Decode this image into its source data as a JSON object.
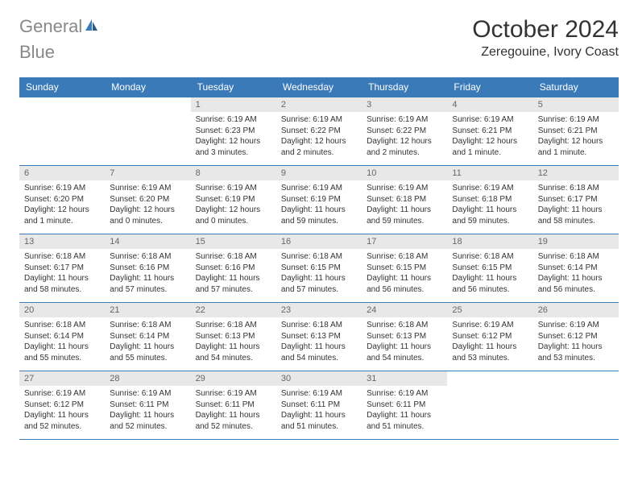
{
  "logo": {
    "text_gray": "General",
    "text_blue": "Blue",
    "icon_color": "#3a7ab8"
  },
  "header": {
    "month_title": "October 2024",
    "location": "Zeregouine, Ivory Coast"
  },
  "colors": {
    "header_bg": "#3a7ab8",
    "header_text": "#ffffff",
    "day_num_bg": "#e8e8e8",
    "border": "#3a7ab8"
  },
  "day_names": [
    "Sunday",
    "Monday",
    "Tuesday",
    "Wednesday",
    "Thursday",
    "Friday",
    "Saturday"
  ],
  "weeks": [
    [
      {
        "num": "",
        "sunrise": "",
        "sunset": "",
        "daylight": ""
      },
      {
        "num": "",
        "sunrise": "",
        "sunset": "",
        "daylight": ""
      },
      {
        "num": "1",
        "sunrise": "Sunrise: 6:19 AM",
        "sunset": "Sunset: 6:23 PM",
        "daylight": "Daylight: 12 hours and 3 minutes."
      },
      {
        "num": "2",
        "sunrise": "Sunrise: 6:19 AM",
        "sunset": "Sunset: 6:22 PM",
        "daylight": "Daylight: 12 hours and 2 minutes."
      },
      {
        "num": "3",
        "sunrise": "Sunrise: 6:19 AM",
        "sunset": "Sunset: 6:22 PM",
        "daylight": "Daylight: 12 hours and 2 minutes."
      },
      {
        "num": "4",
        "sunrise": "Sunrise: 6:19 AM",
        "sunset": "Sunset: 6:21 PM",
        "daylight": "Daylight: 12 hours and 1 minute."
      },
      {
        "num": "5",
        "sunrise": "Sunrise: 6:19 AM",
        "sunset": "Sunset: 6:21 PM",
        "daylight": "Daylight: 12 hours and 1 minute."
      }
    ],
    [
      {
        "num": "6",
        "sunrise": "Sunrise: 6:19 AM",
        "sunset": "Sunset: 6:20 PM",
        "daylight": "Daylight: 12 hours and 1 minute."
      },
      {
        "num": "7",
        "sunrise": "Sunrise: 6:19 AM",
        "sunset": "Sunset: 6:20 PM",
        "daylight": "Daylight: 12 hours and 0 minutes."
      },
      {
        "num": "8",
        "sunrise": "Sunrise: 6:19 AM",
        "sunset": "Sunset: 6:19 PM",
        "daylight": "Daylight: 12 hours and 0 minutes."
      },
      {
        "num": "9",
        "sunrise": "Sunrise: 6:19 AM",
        "sunset": "Sunset: 6:19 PM",
        "daylight": "Daylight: 11 hours and 59 minutes."
      },
      {
        "num": "10",
        "sunrise": "Sunrise: 6:19 AM",
        "sunset": "Sunset: 6:18 PM",
        "daylight": "Daylight: 11 hours and 59 minutes."
      },
      {
        "num": "11",
        "sunrise": "Sunrise: 6:19 AM",
        "sunset": "Sunset: 6:18 PM",
        "daylight": "Daylight: 11 hours and 59 minutes."
      },
      {
        "num": "12",
        "sunrise": "Sunrise: 6:18 AM",
        "sunset": "Sunset: 6:17 PM",
        "daylight": "Daylight: 11 hours and 58 minutes."
      }
    ],
    [
      {
        "num": "13",
        "sunrise": "Sunrise: 6:18 AM",
        "sunset": "Sunset: 6:17 PM",
        "daylight": "Daylight: 11 hours and 58 minutes."
      },
      {
        "num": "14",
        "sunrise": "Sunrise: 6:18 AM",
        "sunset": "Sunset: 6:16 PM",
        "daylight": "Daylight: 11 hours and 57 minutes."
      },
      {
        "num": "15",
        "sunrise": "Sunrise: 6:18 AM",
        "sunset": "Sunset: 6:16 PM",
        "daylight": "Daylight: 11 hours and 57 minutes."
      },
      {
        "num": "16",
        "sunrise": "Sunrise: 6:18 AM",
        "sunset": "Sunset: 6:15 PM",
        "daylight": "Daylight: 11 hours and 57 minutes."
      },
      {
        "num": "17",
        "sunrise": "Sunrise: 6:18 AM",
        "sunset": "Sunset: 6:15 PM",
        "daylight": "Daylight: 11 hours and 56 minutes."
      },
      {
        "num": "18",
        "sunrise": "Sunrise: 6:18 AM",
        "sunset": "Sunset: 6:15 PM",
        "daylight": "Daylight: 11 hours and 56 minutes."
      },
      {
        "num": "19",
        "sunrise": "Sunrise: 6:18 AM",
        "sunset": "Sunset: 6:14 PM",
        "daylight": "Daylight: 11 hours and 56 minutes."
      }
    ],
    [
      {
        "num": "20",
        "sunrise": "Sunrise: 6:18 AM",
        "sunset": "Sunset: 6:14 PM",
        "daylight": "Daylight: 11 hours and 55 minutes."
      },
      {
        "num": "21",
        "sunrise": "Sunrise: 6:18 AM",
        "sunset": "Sunset: 6:14 PM",
        "daylight": "Daylight: 11 hours and 55 minutes."
      },
      {
        "num": "22",
        "sunrise": "Sunrise: 6:18 AM",
        "sunset": "Sunset: 6:13 PM",
        "daylight": "Daylight: 11 hours and 54 minutes."
      },
      {
        "num": "23",
        "sunrise": "Sunrise: 6:18 AM",
        "sunset": "Sunset: 6:13 PM",
        "daylight": "Daylight: 11 hours and 54 minutes."
      },
      {
        "num": "24",
        "sunrise": "Sunrise: 6:18 AM",
        "sunset": "Sunset: 6:13 PM",
        "daylight": "Daylight: 11 hours and 54 minutes."
      },
      {
        "num": "25",
        "sunrise": "Sunrise: 6:19 AM",
        "sunset": "Sunset: 6:12 PM",
        "daylight": "Daylight: 11 hours and 53 minutes."
      },
      {
        "num": "26",
        "sunrise": "Sunrise: 6:19 AM",
        "sunset": "Sunset: 6:12 PM",
        "daylight": "Daylight: 11 hours and 53 minutes."
      }
    ],
    [
      {
        "num": "27",
        "sunrise": "Sunrise: 6:19 AM",
        "sunset": "Sunset: 6:12 PM",
        "daylight": "Daylight: 11 hours and 52 minutes."
      },
      {
        "num": "28",
        "sunrise": "Sunrise: 6:19 AM",
        "sunset": "Sunset: 6:11 PM",
        "daylight": "Daylight: 11 hours and 52 minutes."
      },
      {
        "num": "29",
        "sunrise": "Sunrise: 6:19 AM",
        "sunset": "Sunset: 6:11 PM",
        "daylight": "Daylight: 11 hours and 52 minutes."
      },
      {
        "num": "30",
        "sunrise": "Sunrise: 6:19 AM",
        "sunset": "Sunset: 6:11 PM",
        "daylight": "Daylight: 11 hours and 51 minutes."
      },
      {
        "num": "31",
        "sunrise": "Sunrise: 6:19 AM",
        "sunset": "Sunset: 6:11 PM",
        "daylight": "Daylight: 11 hours and 51 minutes."
      },
      {
        "num": "",
        "sunrise": "",
        "sunset": "",
        "daylight": ""
      },
      {
        "num": "",
        "sunrise": "",
        "sunset": "",
        "daylight": ""
      }
    ]
  ]
}
